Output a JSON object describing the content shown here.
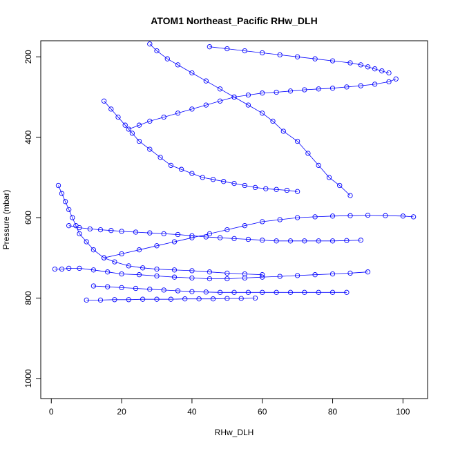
{
  "chart_data": {
    "type": "scatter",
    "title": "ATOM1 Northeast_Pacific RHw_DLH",
    "xlabel": "RHw_DLH",
    "ylabel": "Pressure (mbar)",
    "xlim": [
      -3,
      107
    ],
    "ylim": [
      1050,
      160
    ],
    "y_reversed": true,
    "x_ticks": [
      0,
      20,
      40,
      60,
      80,
      100
    ],
    "y_ticks": [
      200,
      400,
      600,
      800,
      1000
    ],
    "grid": false,
    "legend": "none",
    "marker": "open-circle",
    "connect_points": true,
    "color": "#0000ff",
    "series": [
      {
        "x": [
          28,
          30,
          33,
          36,
          40,
          44,
          48,
          52,
          56,
          60,
          63,
          66,
          70,
          73,
          76,
          79,
          82,
          85
        ],
        "y": [
          168,
          185,
          205,
          220,
          240,
          260,
          280,
          300,
          320,
          340,
          360,
          385,
          410,
          440,
          470,
          500,
          520,
          545
        ]
      },
      {
        "x": [
          2,
          3,
          4,
          5,
          6,
          7,
          8,
          10,
          12,
          15,
          18,
          22,
          26,
          30,
          35,
          40,
          45,
          50,
          55,
          60
        ],
        "y": [
          520,
          540,
          560,
          580,
          600,
          620,
          640,
          660,
          680,
          700,
          710,
          720,
          725,
          728,
          730,
          732,
          735,
          738,
          740,
          742
        ]
      },
      {
        "x": [
          1,
          3,
          5,
          8,
          12,
          16,
          20,
          25,
          30,
          35,
          40,
          45,
          50,
          55,
          60,
          65,
          70,
          75,
          80,
          85,
          90
        ],
        "y": [
          728,
          728,
          726,
          726,
          730,
          735,
          740,
          742,
          745,
          748,
          750,
          752,
          752,
          750,
          748,
          746,
          744,
          742,
          740,
          738,
          735
        ]
      },
      {
        "x": [
          10,
          14,
          18,
          22,
          26,
          30,
          34,
          38,
          42,
          46,
          50,
          54,
          58
        ],
        "y": [
          805,
          805,
          804,
          804,
          803,
          803,
          803,
          802,
          802,
          802,
          801,
          801,
          800
        ]
      },
      {
        "x": [
          15,
          20,
          25,
          30,
          35,
          40,
          45,
          50,
          55,
          60,
          65,
          70,
          75,
          80,
          85,
          90,
          95,
          100,
          103
        ],
        "y": [
          700,
          690,
          680,
          670,
          660,
          650,
          640,
          630,
          620,
          610,
          605,
          600,
          598,
          596,
          595,
          594,
          595,
          596,
          598
        ]
      },
      {
        "x": [
          22,
          25,
          28,
          32,
          36,
          40,
          44,
          48,
          52,
          56,
          60,
          64,
          68,
          72,
          76,
          80,
          84,
          88,
          92,
          96,
          98
        ],
        "y": [
          380,
          370,
          360,
          350,
          340,
          330,
          320,
          310,
          300,
          295,
          290,
          288,
          285,
          282,
          280,
          278,
          275,
          272,
          268,
          262,
          255
        ]
      },
      {
        "x": [
          15,
          17,
          19,
          21,
          23,
          25,
          28,
          31,
          34,
          37,
          40,
          43,
          46,
          49,
          52,
          55,
          58,
          61,
          64,
          67,
          70
        ],
        "y": [
          310,
          330,
          350,
          370,
          390,
          410,
          430,
          450,
          470,
          480,
          490,
          500,
          505,
          510,
          515,
          520,
          525,
          528,
          530,
          532,
          535
        ]
      },
      {
        "x": [
          45,
          50,
          55,
          60,
          65,
          70,
          75,
          80,
          85,
          88,
          90,
          92,
          94,
          96
        ],
        "y": [
          175,
          180,
          185,
          190,
          195,
          200,
          205,
          210,
          215,
          220,
          225,
          230,
          235,
          240
        ]
      },
      {
        "x": [
          5,
          8,
          11,
          14,
          17,
          20,
          24,
          28,
          32,
          36,
          40,
          44,
          48,
          52,
          56,
          60,
          64,
          68,
          72,
          76,
          80,
          84,
          88
        ],
        "y": [
          620,
          625,
          628,
          630,
          632,
          634,
          636,
          638,
          640,
          642,
          645,
          648,
          650,
          652,
          654,
          656,
          658,
          658,
          658,
          658,
          658,
          657,
          656
        ]
      },
      {
        "x": [
          12,
          16,
          20,
          24,
          28,
          32,
          36,
          40,
          44,
          48,
          52,
          56,
          60,
          64,
          68,
          72,
          76,
          80,
          84
        ],
        "y": [
          770,
          772,
          774,
          776,
          778,
          780,
          782,
          784,
          785,
          786,
          786,
          786,
          786,
          786,
          786,
          786,
          786,
          786,
          786
        ]
      }
    ]
  }
}
